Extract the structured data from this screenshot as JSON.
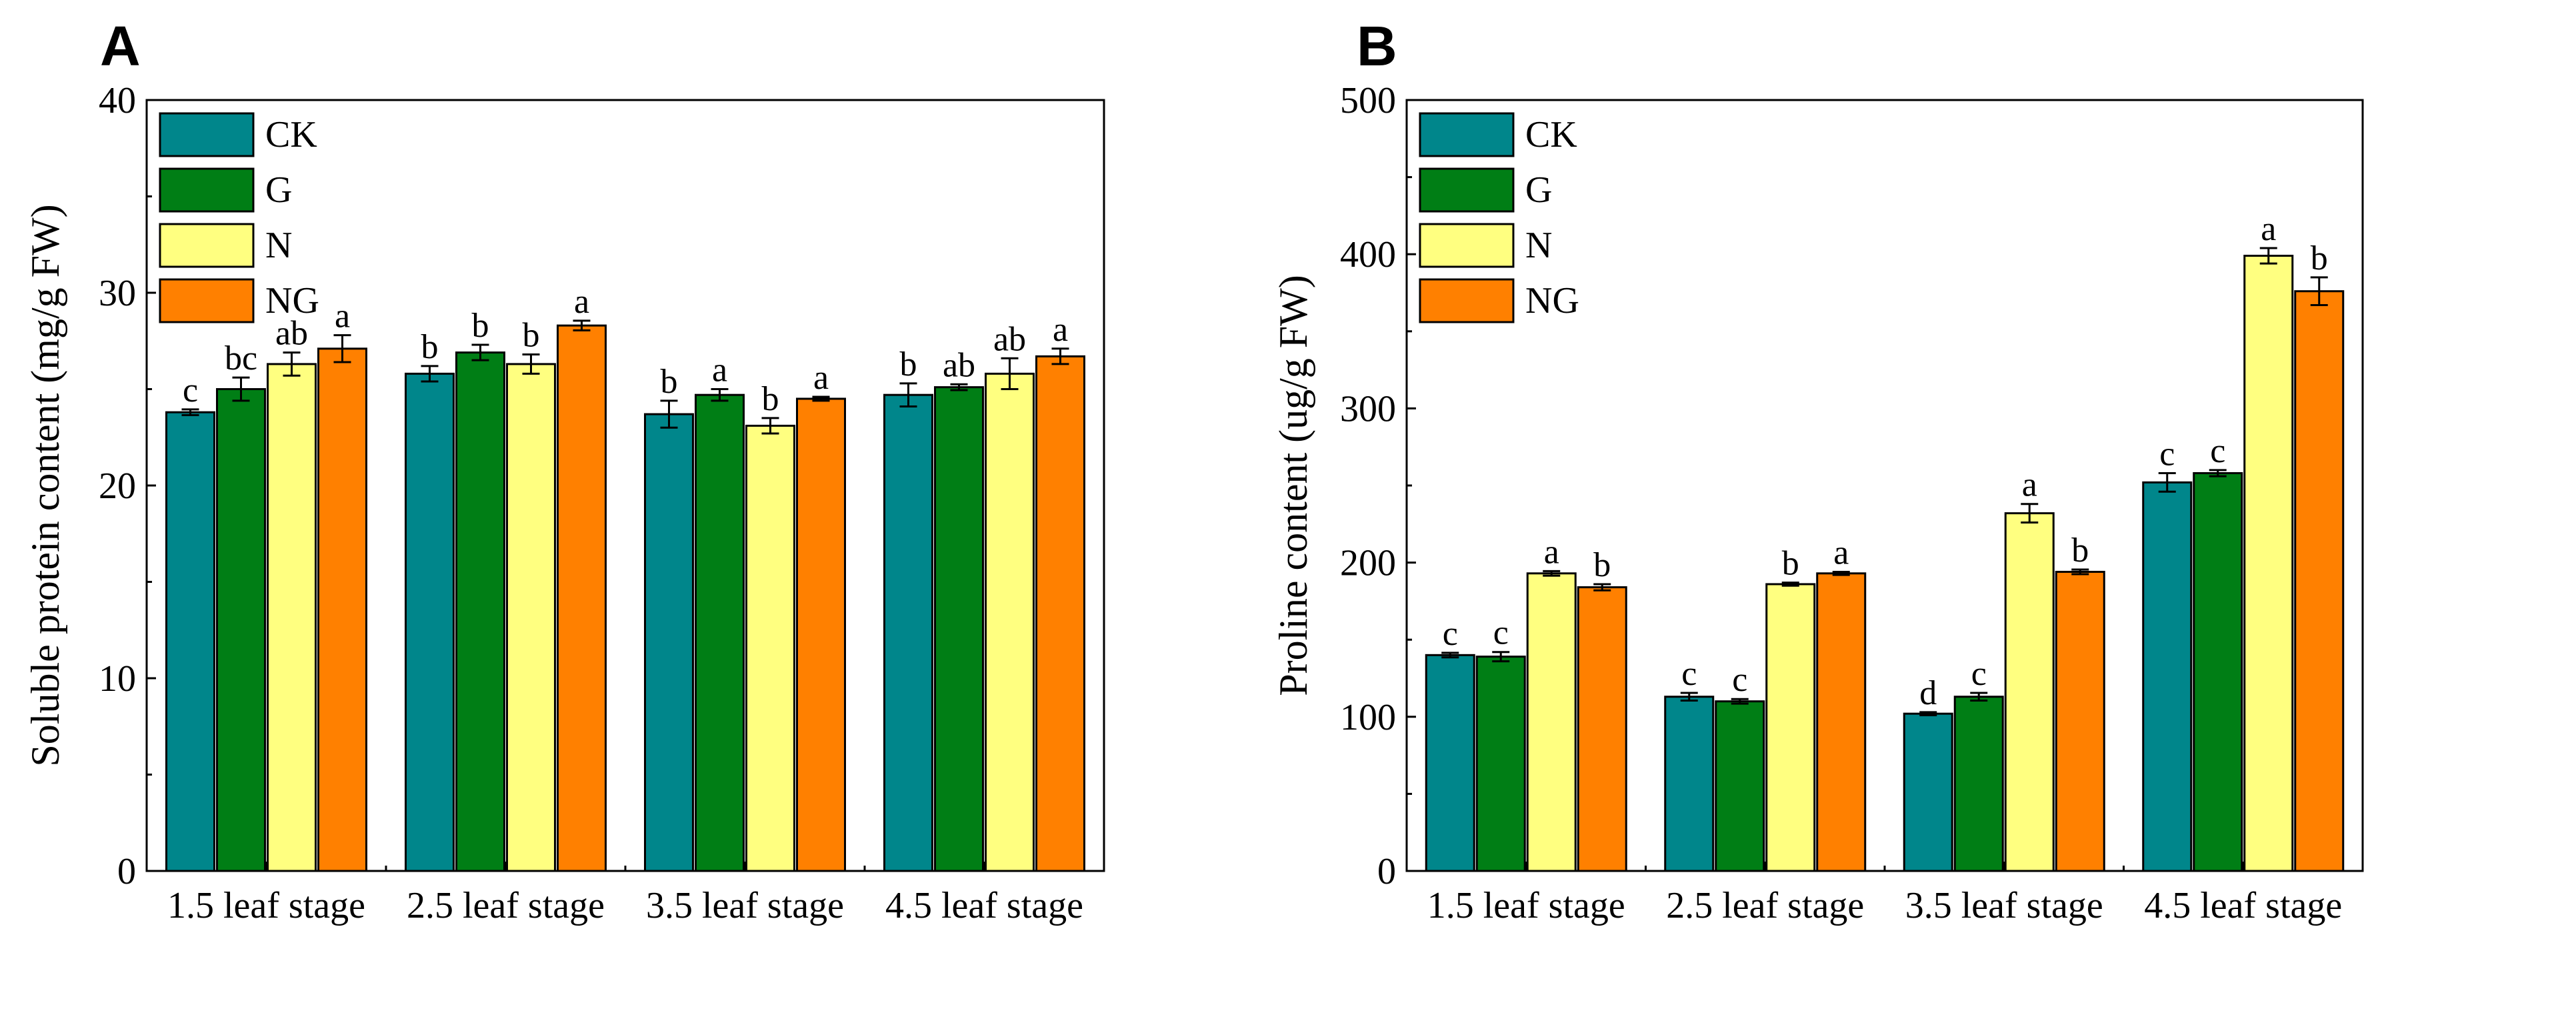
{
  "series_colors": {
    "CK": "#00868B",
    "G": "#007E15",
    "N": "#FFFF80",
    "NG": "#FF8000"
  },
  "chart_data": [
    {
      "panel": "A",
      "type": "bar",
      "title": "",
      "xlabel": "",
      "ylabel": "Soluble protein content (mg/g FW)",
      "ylim": [
        0,
        40
      ],
      "yticks": [
        0,
        10,
        20,
        30,
        40
      ],
      "categories": [
        "1.5  leaf stage",
        "2.5  leaf stage",
        "3.5  leaf stage",
        "4.5  leaf stage"
      ],
      "legend": [
        "CK",
        "G",
        "N",
        "NG"
      ],
      "legend_position": "top-left",
      "series": [
        {
          "name": "CK",
          "values": [
            23.8,
            25.8,
            23.7,
            24.7
          ],
          "errors": [
            0.15,
            0.4,
            0.7,
            0.6
          ],
          "labels": [
            "c",
            "b",
            "b",
            "b"
          ]
        },
        {
          "name": "G",
          "values": [
            25.0,
            26.9,
            24.7,
            25.1
          ],
          "errors": [
            0.6,
            0.4,
            0.3,
            0.15
          ],
          "labels": [
            "bc",
            "b",
            "a",
            "ab"
          ]
        },
        {
          "name": "N",
          "values": [
            26.3,
            26.3,
            23.1,
            25.8
          ],
          "errors": [
            0.6,
            0.5,
            0.4,
            0.8
          ],
          "labels": [
            "ab",
            "b",
            "b",
            "ab"
          ]
        },
        {
          "name": "NG",
          "values": [
            27.1,
            28.3,
            24.5,
            26.7
          ],
          "errors": [
            0.7,
            0.25,
            0.1,
            0.4
          ],
          "labels": [
            "a",
            "a",
            "a",
            "a"
          ]
        }
      ]
    },
    {
      "panel": "B",
      "type": "bar",
      "title": "",
      "xlabel": "",
      "ylabel": "Proline content (ug/g FW)",
      "ylim": [
        0,
        500
      ],
      "yticks": [
        0,
        100,
        200,
        300,
        400,
        500
      ],
      "categories": [
        "1.5  leaf stage",
        "2.5  leaf stage",
        "3.5  leaf stage",
        "4.5  leaf stage"
      ],
      "legend": [
        "CK",
        "G",
        "N",
        "NG"
      ],
      "legend_position": "top-left",
      "series": [
        {
          "name": "CK",
          "values": [
            140,
            113,
            102,
            252
          ],
          "errors": [
            1.5,
            2.5,
            1,
            6
          ],
          "labels": [
            "c",
            "c",
            "d",
            "c"
          ]
        },
        {
          "name": "G",
          "values": [
            139,
            110,
            113,
            258
          ],
          "errors": [
            3,
            1.5,
            2.5,
            2
          ],
          "labels": [
            "c",
            "c",
            "c",
            "c"
          ]
        },
        {
          "name": "N",
          "values": [
            193,
            186,
            232,
            399
          ],
          "errors": [
            1.5,
            1,
            6,
            5
          ],
          "labels": [
            "a",
            "b",
            "a",
            "a"
          ]
        },
        {
          "name": "NG",
          "values": [
            184,
            193,
            194,
            376
          ],
          "errors": [
            2,
            1,
            1.5,
            9
          ],
          "labels": [
            "b",
            "a",
            "b",
            "b"
          ]
        }
      ]
    }
  ]
}
